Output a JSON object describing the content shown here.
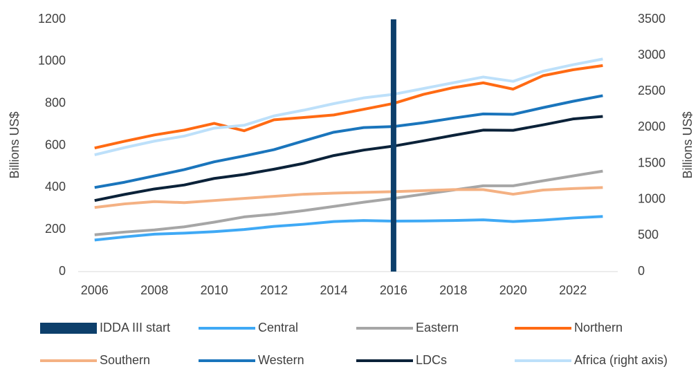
{
  "chart_data": {
    "type": "line",
    "y_label": "Billions US$",
    "y2_label": "Billions US$",
    "x": [
      2006,
      2007,
      2008,
      2009,
      2010,
      2011,
      2012,
      2013,
      2014,
      2015,
      2016,
      2017,
      2018,
      2019,
      2020,
      2021,
      2022,
      2023
    ],
    "xlim": [
      2005.45,
      2023.5
    ],
    "xticks": [
      2006,
      2008,
      2010,
      2012,
      2014,
      2016,
      2018,
      2020,
      2022
    ],
    "ylim": [
      0,
      1200
    ],
    "yticks": [
      0,
      200,
      400,
      600,
      800,
      1000,
      1200
    ],
    "y2lim": [
      0,
      3500
    ],
    "y2ticks": [
      0,
      500,
      1000,
      1500,
      2000,
      2500,
      3000,
      3500
    ],
    "series": [
      {
        "name": "IDDA III start",
        "type": "bar",
        "color": "#0d3f6b",
        "values": [
          null,
          null,
          null,
          null,
          null,
          null,
          null,
          null,
          null,
          null,
          1200,
          null,
          null,
          null,
          null,
          null,
          null,
          null
        ]
      },
      {
        "name": "Central",
        "color": "#3fa9f5",
        "values": [
          150,
          165,
          178,
          183,
          190,
          200,
          215,
          225,
          238,
          243,
          240,
          241,
          243,
          246,
          238,
          245,
          255,
          262
        ]
      },
      {
        "name": "Eastern",
        "color": "#a6a6a6",
        "values": [
          175,
          188,
          198,
          213,
          235,
          260,
          273,
          290,
          310,
          330,
          348,
          368,
          388,
          408,
          408,
          432,
          455,
          478
        ]
      },
      {
        "name": "Northern",
        "color": "#ff6a13",
        "values": [
          588,
          620,
          650,
          673,
          705,
          670,
          722,
          733,
          745,
          772,
          800,
          843,
          875,
          898,
          868,
          932,
          960,
          980
        ]
      },
      {
        "name": "Southern",
        "color": "#f4b183",
        "values": [
          305,
          322,
          333,
          328,
          338,
          348,
          358,
          368,
          373,
          377,
          380,
          385,
          390,
          390,
          368,
          388,
          395,
          400
        ]
      },
      {
        "name": "Western",
        "color": "#1a75bc",
        "values": [
          400,
          425,
          455,
          485,
          522,
          550,
          580,
          622,
          663,
          685,
          690,
          708,
          730,
          750,
          748,
          780,
          810,
          837
        ]
      },
      {
        "name": "LDCs",
        "color": "#0b2239",
        "values": [
          338,
          367,
          393,
          412,
          443,
          462,
          487,
          515,
          552,
          578,
          597,
          622,
          648,
          673,
          672,
          698,
          726,
          738
        ]
      },
      {
        "name": "Africa (right axis)",
        "color": "#bde0fa",
        "axis": "y2",
        "values": [
          1620,
          1720,
          1810,
          1880,
          1990,
          2030,
          2160,
          2240,
          2330,
          2410,
          2460,
          2540,
          2620,
          2700,
          2640,
          2780,
          2870,
          2950
        ]
      }
    ]
  }
}
